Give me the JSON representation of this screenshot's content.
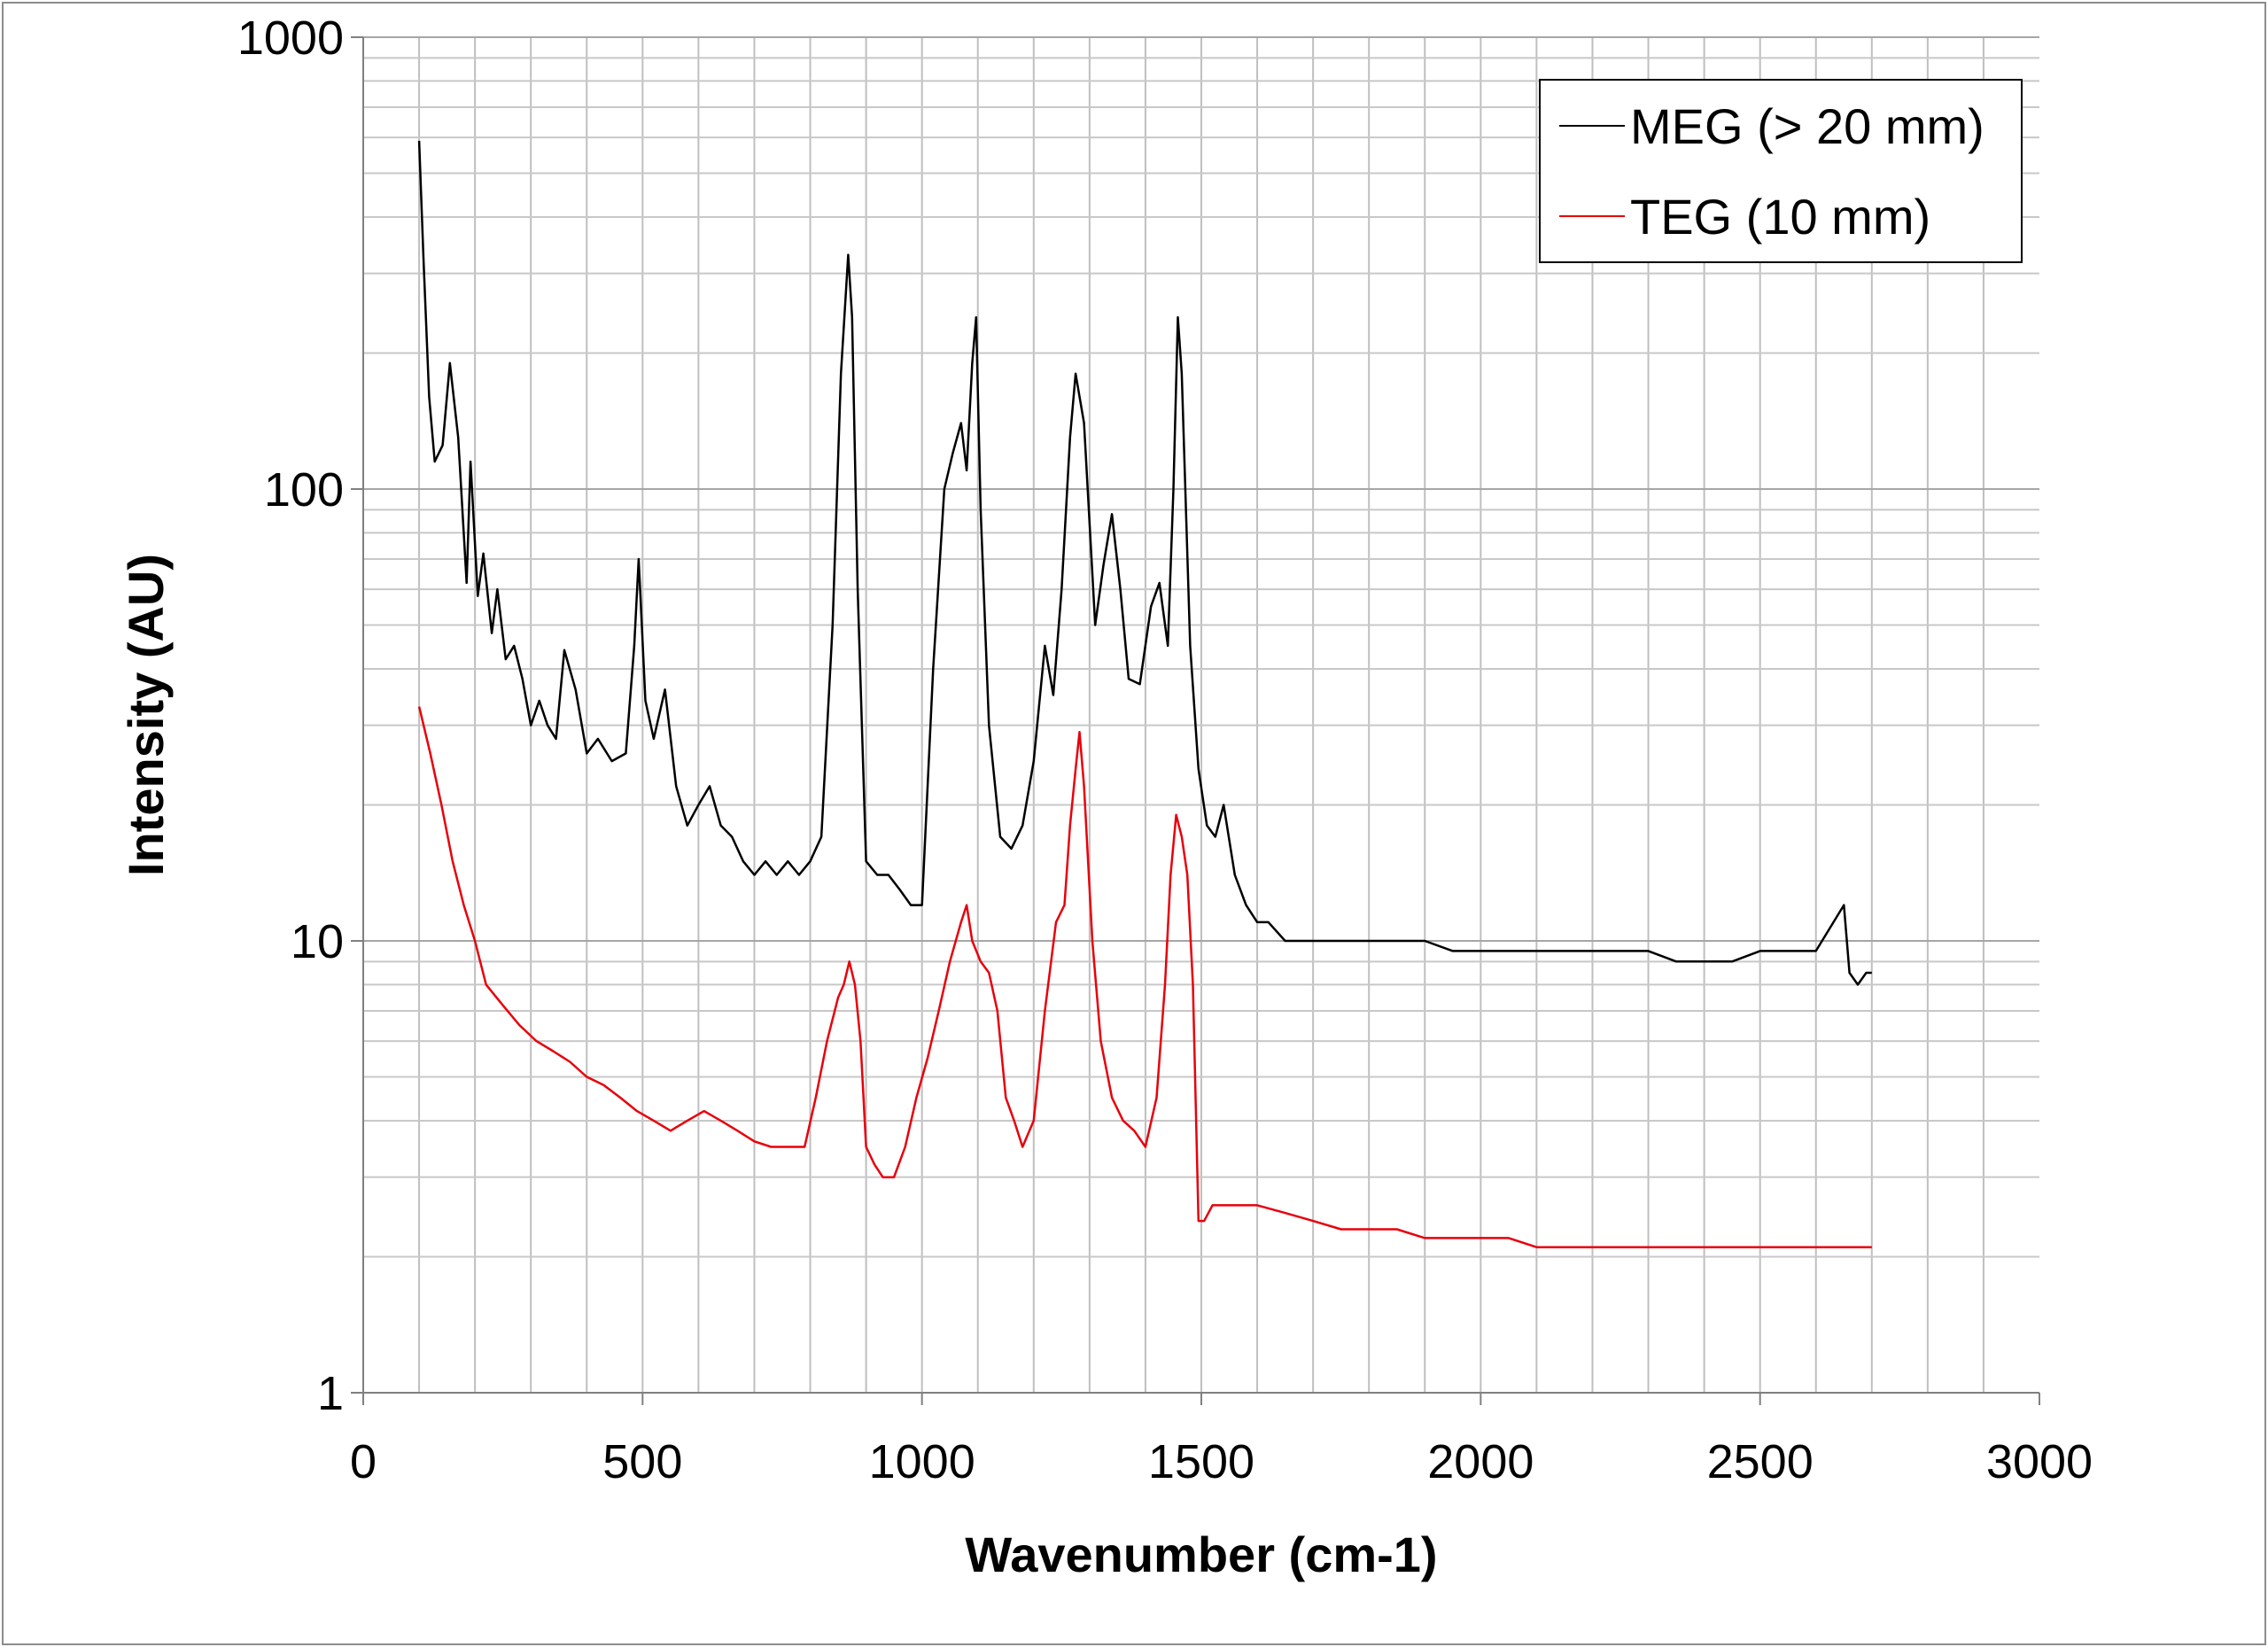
{
  "chart_data": {
    "type": "line",
    "xscale": "linear",
    "yscale": "log",
    "xlabel": "Wavenumber (cm-1)",
    "ylabel": "Intensity (AU)",
    "xlim": [
      0,
      3000
    ],
    "ylim": [
      1,
      1000
    ],
    "xticks": [
      0,
      500,
      1000,
      1500,
      2000,
      2500,
      3000
    ],
    "xtick_labels": [
      "0",
      "500",
      "1000",
      "1500",
      "2000",
      "2500",
      "3000"
    ],
    "yticks": [
      1,
      10,
      100,
      1000
    ],
    "ytick_labels": [
      "1",
      "10",
      "100",
      "1000"
    ],
    "grid": true,
    "legend_position": "top-right",
    "series": [
      {
        "name": "MEG (> 20 mm)",
        "color": "#000000",
        "x": [
          100,
          108,
          118,
          128,
          142,
          155,
          170,
          185,
          192,
          205,
          215,
          230,
          240,
          255,
          270,
          285,
          300,
          315,
          330,
          345,
          360,
          380,
          400,
          420,
          445,
          470,
          485,
          493,
          505,
          520,
          540,
          560,
          580,
          600,
          620,
          640,
          660,
          680,
          700,
          720,
          740,
          760,
          780,
          800,
          820,
          840,
          855,
          868,
          875,
          885,
          900,
          920,
          940,
          960,
          980,
          1000,
          1020,
          1040,
          1055,
          1070,
          1080,
          1090,
          1097,
          1105,
          1120,
          1140,
          1160,
          1180,
          1200,
          1220,
          1235,
          1250,
          1265,
          1275,
          1290,
          1310,
          1325,
          1340,
          1355,
          1370,
          1390,
          1410,
          1425,
          1440,
          1450,
          1458,
          1465,
          1480,
          1495,
          1510,
          1525,
          1540,
          1560,
          1580,
          1600,
          1620,
          1650,
          1700,
          1750,
          1800,
          1850,
          1900,
          1950,
          2000,
          2050,
          2100,
          2150,
          2200,
          2250,
          2300,
          2350,
          2400,
          2450,
          2500,
          2550,
          2600,
          2650,
          2660,
          2675,
          2690,
          2700
        ],
        "y": [
          590,
          320,
          160,
          115,
          125,
          190,
          130,
          62,
          115,
          58,
          72,
          48,
          60,
          42,
          45,
          38,
          30,
          34,
          30,
          28,
          44,
          36,
          26,
          28,
          25,
          26,
          45,
          70,
          34,
          28,
          36,
          22,
          18,
          20,
          22,
          18,
          17,
          15,
          14,
          15,
          14,
          15,
          14,
          15,
          17,
          50,
          180,
          330,
          240,
          60,
          15,
          14,
          14,
          13,
          12,
          12,
          40,
          100,
          120,
          140,
          110,
          190,
          240,
          90,
          30,
          17,
          16,
          18,
          25,
          45,
          35,
          60,
          130,
          180,
          140,
          50,
          68,
          88,
          60,
          38,
          37,
          55,
          62,
          45,
          100,
          240,
          180,
          45,
          24,
          18,
          17,
          20,
          14,
          12,
          11,
          11,
          10,
          10,
          10,
          10,
          10,
          10,
          9.5,
          9.5,
          9.5,
          9.5,
          9.5,
          9.5,
          9.5,
          9.5,
          9,
          9,
          9,
          9.5,
          9.5,
          9.5,
          12,
          8.5,
          8,
          8.5,
          8.5
        ]
      },
      {
        "name": "TEG (10 mm)",
        "color": "#e8000b",
        "x": [
          100,
          120,
          140,
          160,
          180,
          200,
          220,
          250,
          280,
          310,
          340,
          370,
          400,
          430,
          460,
          490,
          520,
          550,
          580,
          610,
          640,
          670,
          700,
          730,
          760,
          790,
          810,
          830,
          850,
          860,
          870,
          880,
          890,
          900,
          915,
          930,
          950,
          970,
          990,
          1010,
          1030,
          1050,
          1070,
          1080,
          1090,
          1105,
          1120,
          1135,
          1150,
          1165,
          1180,
          1200,
          1220,
          1240,
          1255,
          1265,
          1275,
          1282,
          1290,
          1305,
          1320,
          1340,
          1360,
          1380,
          1400,
          1420,
          1435,
          1445,
          1455,
          1465,
          1475,
          1485,
          1495,
          1505,
          1520,
          1550,
          1600,
          1650,
          1700,
          1750,
          1800,
          1850,
          1900,
          1950,
          2000,
          2050,
          2100,
          2150,
          2200,
          2250,
          2300,
          2350,
          2400,
          2450,
          2500,
          2550,
          2600,
          2650,
          2700
        ],
        "y": [
          33,
          26,
          20,
          15,
          12,
          10,
          8,
          7.2,
          6.5,
          6,
          5.7,
          5.4,
          5,
          4.8,
          4.5,
          4.2,
          4,
          3.8,
          4,
          4.2,
          4,
          3.8,
          3.6,
          3.5,
          3.5,
          3.5,
          4.5,
          6,
          7.5,
          8,
          9,
          8,
          6,
          3.5,
          3.2,
          3,
          3,
          3.5,
          4.5,
          5.5,
          7,
          9,
          11,
          12,
          10,
          9,
          8.5,
          7,
          4.5,
          4,
          3.5,
          4,
          7,
          11,
          12,
          18,
          24,
          29,
          22,
          10,
          6,
          4.5,
          4,
          3.8,
          3.5,
          4.5,
          8,
          14,
          19,
          17,
          14,
          8,
          2.4,
          2.4,
          2.6,
          2.6,
          2.6,
          2.5,
          2.4,
          2.3,
          2.3,
          2.3,
          2.2,
          2.2,
          2.2,
          2.2,
          2.1,
          2.1,
          2.1,
          2.1,
          2.1,
          2.1,
          2.1,
          2.1,
          2.1,
          2.1,
          2.1,
          2.1,
          2.1
        ]
      }
    ]
  }
}
